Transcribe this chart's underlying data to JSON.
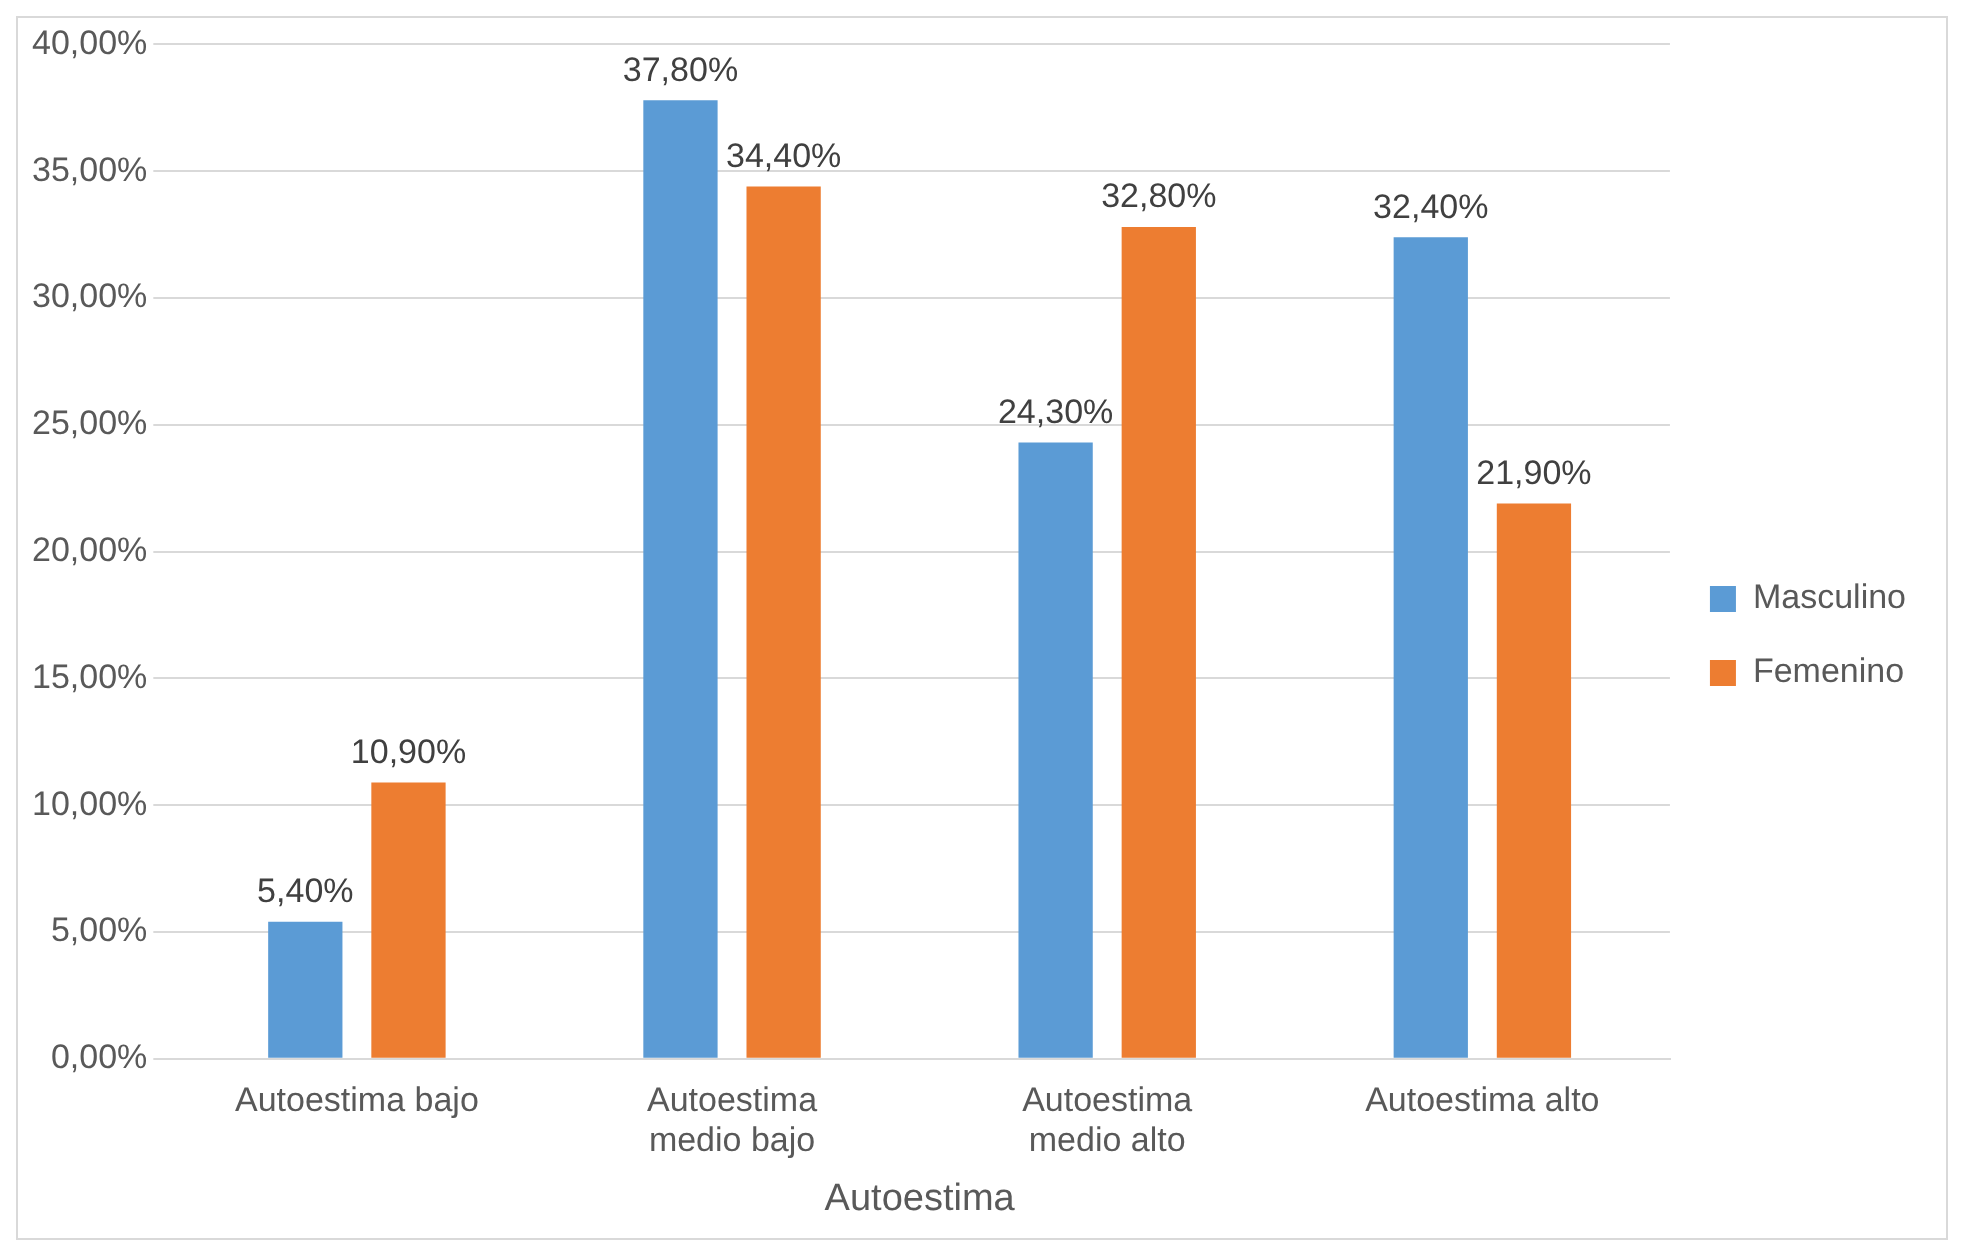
{
  "chart_data": {
    "type": "bar",
    "xlabel": "Autoestima",
    "categories": [
      "Autoestima bajo",
      "Autoestima medio bajo",
      "Autoestima medio alto",
      "Autoestima alto"
    ],
    "series": [
      {
        "name": "Masculino",
        "color": "#5b9bd5",
        "values": [
          5.4,
          37.8,
          24.3,
          32.4
        ],
        "value_labels": [
          "5,40%",
          "37,80%",
          "24,30%",
          "32,40%"
        ]
      },
      {
        "name": "Femenino",
        "color": "#ed7d31",
        "values": [
          10.9,
          34.4,
          32.8,
          21.9
        ],
        "value_labels": [
          "10,90%",
          "34,40%",
          "32,80%",
          "21,90%"
        ]
      }
    ],
    "ylim": [
      0,
      40
    ],
    "yticks": [
      {
        "value": 0,
        "label": "0,00%"
      },
      {
        "value": 5,
        "label": "5,00%"
      },
      {
        "value": 10,
        "label": "10,00%"
      },
      {
        "value": 15,
        "label": "15,00%"
      },
      {
        "value": 20,
        "label": "20,00%"
      },
      {
        "value": 25,
        "label": "25,00%"
      },
      {
        "value": 30,
        "label": "30,00%"
      },
      {
        "value": 35,
        "label": "35,00%"
      },
      {
        "value": 40,
        "label": "40,00%"
      }
    ],
    "grid": "y",
    "legend": "right"
  }
}
